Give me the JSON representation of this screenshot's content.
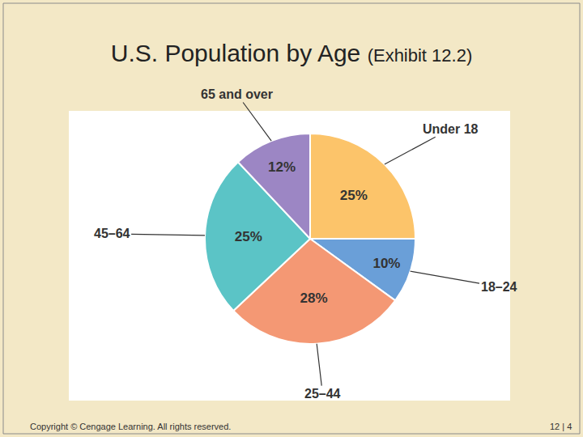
{
  "chart_data": {
    "type": "pie",
    "title": "U.S. Population by Age",
    "subtitle": "(Exhibit 12.2)",
    "categories": [
      "Under 18",
      "18–24",
      "25–44",
      "45–64",
      "65 and over"
    ],
    "values": [
      25,
      10,
      28,
      25,
      12
    ],
    "value_labels": [
      "25%",
      "10%",
      "28%",
      "25%",
      "12%"
    ],
    "colors": [
      "#fcc46a",
      "#6a9fd8",
      "#f49874",
      "#5bc4c6",
      "#9c86c4"
    ],
    "data_labels": true,
    "annotations": [
      "Copyright © Cengage Learning. All rights reserved.",
      "12 | 4"
    ]
  }
}
